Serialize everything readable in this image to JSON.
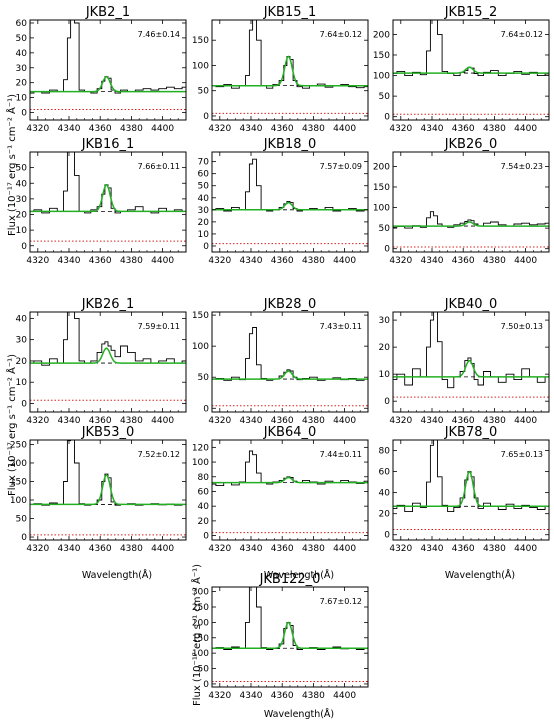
{
  "figure": {
    "ylabel": "Flux (10⁻¹⁷ erg s⁻¹ cm⁻² Å⁻¹)",
    "xlabel": "Wavelength(Å)"
  },
  "chart_data": [
    {
      "type": "line",
      "title": "JKB2_1",
      "annotation": "7.46±0.14",
      "xlim": [
        4315,
        4415
      ],
      "xticks": [
        4320,
        4340,
        4360,
        4380,
        4400
      ],
      "ylim": [
        -5,
        62
      ],
      "yticks": [
        0,
        10,
        20,
        30,
        40,
        50,
        60
      ],
      "series": [
        {
          "x": [
            4315,
            4320,
            4325,
            4330,
            4335,
            4338,
            4340,
            4342,
            4345,
            4348,
            4352,
            4356,
            4360,
            4362,
            4364,
            4366,
            4368,
            4371,
            4375,
            4380,
            4385,
            4390,
            4395,
            4400,
            4405,
            4410,
            4415
          ],
          "y": [
            13,
            14,
            13,
            15,
            14,
            22,
            50,
            90,
            60,
            15,
            14,
            13,
            16,
            21,
            24,
            23,
            15,
            13,
            15,
            14,
            15,
            16,
            15,
            16,
            17,
            16,
            17
          ]
        }
      ],
      "fit_level": 14,
      "fit_peak": 24,
      "error_level": 2
    },
    {
      "type": "line",
      "title": "JKB15_1",
      "annotation": "7.64±0.12",
      "xlim": [
        4315,
        4415
      ],
      "xticks": [
        4320,
        4340,
        4360,
        4380,
        4400
      ],
      "ylim": [
        -8,
        190
      ],
      "yticks": [
        0,
        50,
        100,
        150
      ],
      "series": [
        {
          "x": [
            4315,
            4320,
            4325,
            4330,
            4335,
            4338,
            4340,
            4342,
            4345,
            4348,
            4352,
            4356,
            4360,
            4362,
            4364,
            4366,
            4368,
            4371,
            4375,
            4380,
            4385,
            4390,
            4395,
            4400,
            4405,
            4410,
            4415
          ],
          "y": [
            60,
            58,
            62,
            55,
            60,
            80,
            170,
            260,
            150,
            60,
            55,
            62,
            70,
            100,
            118,
            112,
            70,
            58,
            55,
            60,
            63,
            57,
            60,
            62,
            58,
            56,
            58
          ]
        }
      ],
      "fit_level": 60,
      "fit_peak": 118,
      "error_level": 5
    },
    {
      "type": "line",
      "title": "JKB15_2",
      "annotation": "7.64±0.12",
      "xlim": [
        4315,
        4415
      ],
      "xticks": [
        4320,
        4340,
        4360,
        4380,
        4400
      ],
      "ylim": [
        -8,
        235
      ],
      "yticks": [
        0,
        50,
        100,
        150,
        200
      ],
      "series": [
        {
          "x": [
            4315,
            4320,
            4325,
            4330,
            4335,
            4338,
            4340,
            4342,
            4345,
            4348,
            4352,
            4356,
            4360,
            4362,
            4364,
            4366,
            4368,
            4371,
            4375,
            4380,
            4385,
            4390,
            4395,
            4400,
            4405,
            4410,
            4415
          ],
          "y": [
            105,
            110,
            100,
            108,
            102,
            160,
            240,
            300,
            200,
            110,
            105,
            100,
            108,
            112,
            120,
            118,
            105,
            100,
            108,
            112,
            100,
            105,
            110,
            103,
            108,
            100,
            104
          ]
        }
      ],
      "fit_level": 106,
      "fit_peak": 120,
      "error_level": 6
    },
    {
      "type": "line",
      "title": "JKB16_1",
      "annotation": "7.66±0.11",
      "xlim": [
        4315,
        4415
      ],
      "xticks": [
        4320,
        4340,
        4360,
        4380,
        4400
      ],
      "ylim": [
        -4,
        60
      ],
      "yticks": [
        0,
        10,
        20,
        30,
        40,
        50
      ],
      "series": [
        {
          "x": [
            4315,
            4320,
            4325,
            4330,
            4335,
            4338,
            4340,
            4342,
            4345,
            4348,
            4352,
            4356,
            4360,
            4362,
            4364,
            4366,
            4368,
            4371,
            4375,
            4380,
            4385,
            4390,
            4395,
            4400,
            4405,
            4410,
            4415
          ],
          "y": [
            22,
            23,
            21,
            24,
            22,
            35,
            60,
            65,
            45,
            22,
            21,
            23,
            25,
            33,
            39,
            37,
            24,
            21,
            22,
            23,
            25,
            22,
            21,
            24,
            22,
            23,
            22
          ]
        }
      ],
      "fit_level": 22,
      "fit_peak": 39,
      "error_level": 3
    },
    {
      "type": "line",
      "title": "JKB18_0",
      "annotation": "7.57±0.09",
      "xlim": [
        4315,
        4415
      ],
      "xticks": [
        4320,
        4340,
        4360,
        4380,
        4400
      ],
      "ylim": [
        -5,
        78
      ],
      "yticks": [
        0,
        10,
        20,
        30,
        40,
        50,
        60,
        70
      ],
      "series": [
        {
          "x": [
            4315,
            4320,
            4325,
            4330,
            4335,
            4338,
            4340,
            4342,
            4345,
            4348,
            4352,
            4356,
            4360,
            4362,
            4364,
            4366,
            4368,
            4371,
            4375,
            4380,
            4385,
            4390,
            4395,
            4400,
            4405,
            4410,
            4415
          ],
          "y": [
            30,
            31,
            29,
            32,
            30,
            45,
            68,
            72,
            50,
            30,
            29,
            30,
            32,
            35,
            37,
            36,
            31,
            29,
            30,
            31,
            30,
            32,
            29,
            30,
            31,
            29,
            30
          ]
        }
      ],
      "fit_level": 30,
      "fit_peak": 36,
      "error_level": 2
    },
    {
      "type": "line",
      "title": "JKB26_0",
      "annotation": "7.54±0.23",
      "xlim": [
        4315,
        4415
      ],
      "xticks": [
        4320,
        4340,
        4360,
        4380,
        4400
      ],
      "ylim": [
        -8,
        235
      ],
      "yticks": [
        0,
        50,
        100,
        150,
        200
      ],
      "series": [
        {
          "x": [
            4315,
            4320,
            4325,
            4330,
            4335,
            4338,
            4340,
            4342,
            4345,
            4348,
            4352,
            4356,
            4360,
            4362,
            4364,
            4366,
            4368,
            4371,
            4375,
            4380,
            4385,
            4390,
            4395,
            4400,
            4405,
            4410,
            4415
          ],
          "y": [
            52,
            54,
            50,
            56,
            52,
            75,
            90,
            80,
            60,
            55,
            52,
            58,
            62,
            66,
            70,
            68,
            60,
            55,
            62,
            65,
            58,
            55,
            60,
            62,
            58,
            60,
            62
          ]
        }
      ],
      "fit_level": 55,
      "fit_peak": 65,
      "error_level": 4
    },
    {
      "type": "line",
      "title": "JKB26_1",
      "annotation": "7.59±0.11",
      "xlim": [
        4315,
        4415
      ],
      "xticks": [
        4320,
        4340,
        4360,
        4380,
        4400
      ],
      "ylim": [
        -4,
        43
      ],
      "yticks": [
        0,
        10,
        20,
        30,
        40
      ],
      "series": [
        {
          "x": [
            4315,
            4320,
            4325,
            4330,
            4335,
            4338,
            4340,
            4342,
            4345,
            4348,
            4352,
            4356,
            4360,
            4362,
            4364,
            4366,
            4368,
            4371,
            4375,
            4380,
            4385,
            4390,
            4395,
            4400,
            4405,
            4410,
            4415
          ],
          "y": [
            19,
            20,
            18,
            21,
            19,
            30,
            50,
            55,
            40,
            20,
            19,
            20,
            24,
            28,
            29,
            27,
            25,
            22,
            27,
            24,
            20,
            21,
            19,
            20,
            21,
            19,
            20
          ]
        }
      ],
      "fit_level": 19,
      "fit_peak": 26,
      "error_level": 1.5
    },
    {
      "type": "line",
      "title": "JKB28_0",
      "annotation": "7.43±0.11",
      "xlim": [
        4315,
        4415
      ],
      "xticks": [
        4320,
        4340,
        4360,
        4380,
        4400
      ],
      "ylim": [
        -6,
        155
      ],
      "yticks": [
        0,
        50,
        100,
        150
      ],
      "series": [
        {
          "x": [
            4315,
            4320,
            4325,
            4330,
            4335,
            4338,
            4340,
            4342,
            4345,
            4348,
            4352,
            4356,
            4360,
            4362,
            4364,
            4366,
            4368,
            4371,
            4375,
            4380,
            4385,
            4390,
            4395,
            4400,
            4405,
            4410,
            4415
          ],
          "y": [
            47,
            48,
            45,
            50,
            46,
            80,
            120,
            130,
            70,
            48,
            45,
            47,
            52,
            58,
            62,
            60,
            50,
            46,
            48,
            50,
            45,
            47,
            49,
            46,
            48,
            45,
            47
          ]
        }
      ],
      "fit_level": 47,
      "fit_peak": 60,
      "error_level": 4
    },
    {
      "type": "line",
      "title": "JKB40_0",
      "annotation": "7.50±0.13",
      "xlim": [
        4315,
        4415
      ],
      "xticks": [
        4320,
        4340,
        4360,
        4380,
        4400
      ],
      "ylim": [
        -4,
        33
      ],
      "yticks": [
        0,
        10,
        20,
        30
      ],
      "series": [
        {
          "x": [
            4315,
            4320,
            4325,
            4330,
            4335,
            4338,
            4340,
            4342,
            4345,
            4348,
            4352,
            4356,
            4360,
            4362,
            4364,
            4366,
            4368,
            4371,
            4375,
            4380,
            4385,
            4390,
            4395,
            4400,
            4405,
            4410,
            4415
          ],
          "y": [
            8,
            10,
            6,
            12,
            9,
            20,
            30,
            34,
            22,
            8,
            5,
            9,
            11,
            15,
            16,
            14,
            8,
            6,
            11,
            9,
            7,
            10,
            8,
            12,
            9,
            7,
            9
          ]
        }
      ],
      "fit_level": 9,
      "fit_peak": 15,
      "error_level": 1.5
    },
    {
      "type": "line",
      "title": "JKB53_0",
      "annotation": "7.52±0.12",
      "xlim": [
        4315,
        4415
      ],
      "xticks": [
        4320,
        4340,
        4360,
        4380,
        4400
      ],
      "ylim": [
        -8,
        262
      ],
      "yticks": [
        0,
        50,
        100,
        150,
        200,
        250
      ],
      "series": [
        {
          "x": [
            4315,
            4320,
            4325,
            4330,
            4335,
            4338,
            4340,
            4342,
            4345,
            4348,
            4352,
            4356,
            4360,
            4362,
            4364,
            4366,
            4368,
            4371,
            4375,
            4380,
            4385,
            4390,
            4395,
            4400,
            4405,
            4410,
            4415
          ],
          "y": [
            88,
            90,
            86,
            92,
            88,
            150,
            260,
            320,
            200,
            90,
            86,
            88,
            100,
            150,
            170,
            160,
            95,
            86,
            88,
            90,
            86,
            88,
            90,
            87,
            89,
            86,
            88
          ]
        }
      ],
      "fit_level": 88,
      "fit_peak": 168,
      "error_level": 6
    },
    {
      "type": "line",
      "title": "JKB64_0",
      "annotation": "7.44±0.11",
      "xlim": [
        4315,
        4415
      ],
      "xticks": [
        4320,
        4340,
        4360,
        4380,
        4400
      ],
      "ylim": [
        -6,
        130
      ],
      "yticks": [
        0,
        20,
        40,
        60,
        80,
        100,
        120
      ],
      "series": [
        {
          "x": [
            4315,
            4320,
            4325,
            4330,
            4335,
            4338,
            4340,
            4342,
            4345,
            4348,
            4352,
            4356,
            4360,
            4362,
            4364,
            4366,
            4368,
            4371,
            4375,
            4380,
            4385,
            4390,
            4395,
            4400,
            4405,
            4410,
            4415
          ],
          "y": [
            70,
            68,
            72,
            69,
            73,
            100,
            115,
            110,
            85,
            72,
            70,
            73,
            75,
            78,
            80,
            79,
            74,
            72,
            75,
            73,
            70,
            74,
            72,
            75,
            73,
            71,
            74
          ]
        }
      ],
      "fit_level": 72,
      "fit_peak": 79,
      "error_level": 4
    },
    {
      "type": "line",
      "title": "JKB78_0",
      "annotation": "7.65±0.13",
      "xlim": [
        4315,
        4415
      ],
      "xticks": [
        4320,
        4340,
        4360,
        4380,
        4400
      ],
      "ylim": [
        -5,
        90
      ],
      "yticks": [
        0,
        20,
        40,
        60,
        80
      ],
      "series": [
        {
          "x": [
            4315,
            4320,
            4325,
            4330,
            4335,
            4338,
            4340,
            4342,
            4345,
            4348,
            4352,
            4356,
            4360,
            4362,
            4364,
            4366,
            4368,
            4371,
            4375,
            4380,
            4385,
            4390,
            4395,
            4400,
            4405,
            4410,
            4415
          ],
          "y": [
            25,
            28,
            22,
            30,
            26,
            50,
            85,
            95,
            55,
            28,
            22,
            26,
            35,
            52,
            60,
            55,
            35,
            25,
            30,
            27,
            24,
            29,
            25,
            28,
            26,
            24,
            27
          ]
        }
      ],
      "fit_level": 27,
      "fit_peak": 60,
      "error_level": 5
    },
    {
      "type": "line",
      "title": "JKB122_0",
      "annotation": "7.67±0.12",
      "xlim": [
        4315,
        4415
      ],
      "xticks": [
        4320,
        4340,
        4360,
        4380,
        4400
      ],
      "ylim": [
        -10,
        315
      ],
      "yticks": [
        0,
        50,
        100,
        150,
        200,
        250,
        300
      ],
      "series": [
        {
          "x": [
            4315,
            4320,
            4325,
            4330,
            4335,
            4338,
            4340,
            4342,
            4345,
            4348,
            4352,
            4356,
            4360,
            4362,
            4364,
            4366,
            4368,
            4371,
            4375,
            4380,
            4385,
            4390,
            4395,
            4400,
            4405,
            4410,
            4415
          ],
          "y": [
            115,
            118,
            112,
            120,
            116,
            200,
            320,
            400,
            250,
            118,
            112,
            115,
            130,
            180,
            200,
            190,
            125,
            112,
            115,
            118,
            112,
            116,
            120,
            114,
            117,
            112,
            116
          ]
        }
      ],
      "fit_level": 116,
      "fit_peak": 200,
      "error_level": 8
    }
  ]
}
